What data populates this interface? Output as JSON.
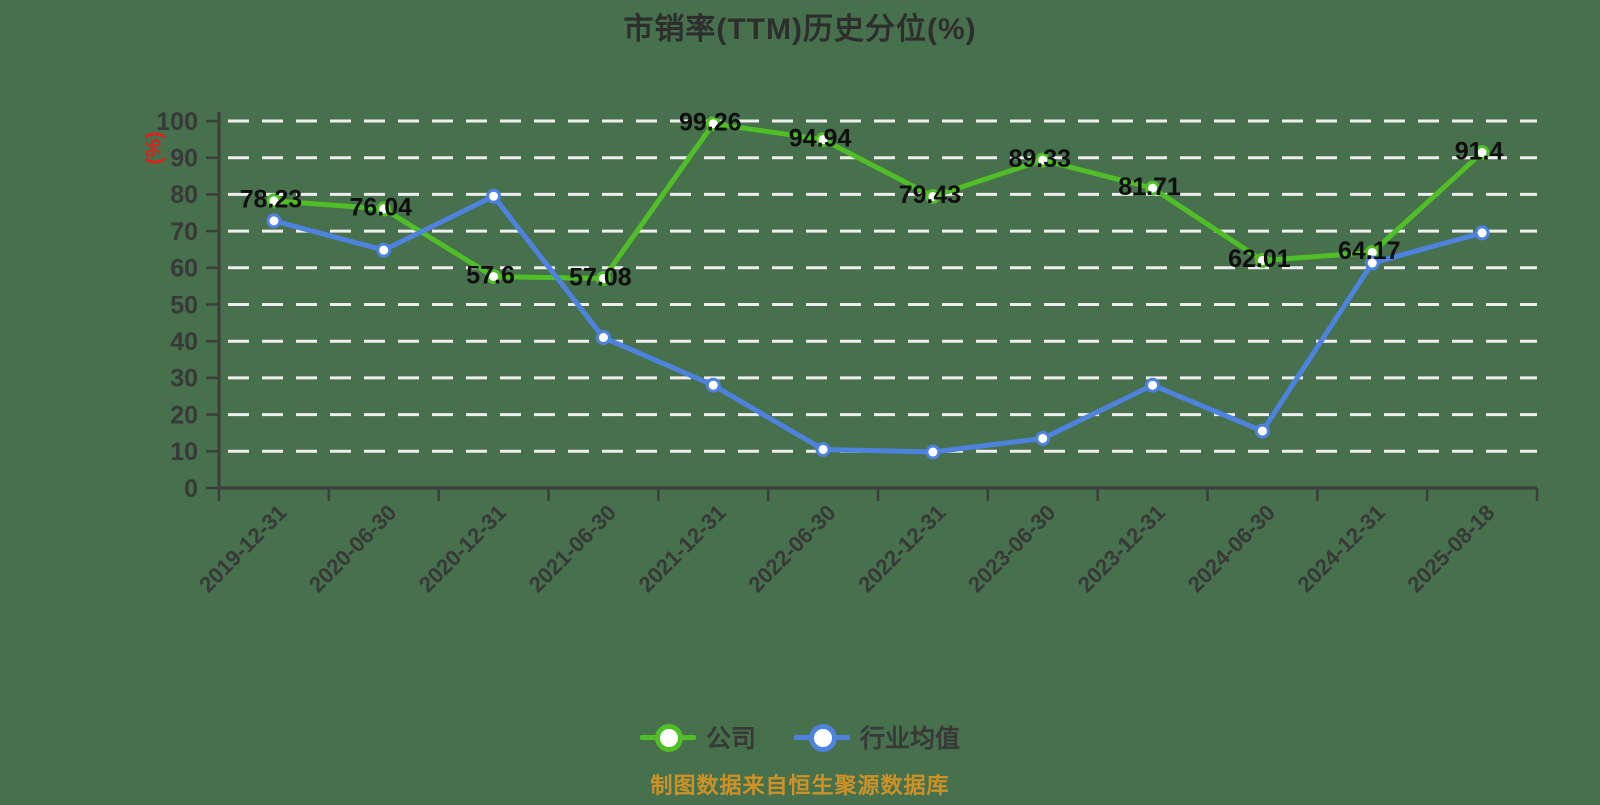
{
  "title": "市销率(TTM)历史分位(%)",
  "footer": "制图数据来自恒生聚源数据库",
  "legend": {
    "company": "公司",
    "industry": "行业均值"
  },
  "colors": {
    "background": "#47704D",
    "grid": "#eeeeee",
    "axis": "#3d3d3d",
    "tick_text": "#393939",
    "title_text": "#2e2e2e",
    "data_label": "#0f0f0f",
    "unit_red": "#e01f1f",
    "footer_orange": "#cd9227",
    "company_green": "#4fbe27",
    "industry_blue": "#4e82df"
  },
  "chart_data": {
    "type": "line",
    "title": "市销率(TTM)历史分位(%)",
    "ylabel": "(%)",
    "xlabel": "",
    "ylim": [
      0,
      100
    ],
    "yticks": [
      0,
      10,
      20,
      30,
      40,
      50,
      60,
      70,
      80,
      90,
      100
    ],
    "grid": "horizontal-dashed-white",
    "legend_position": "bottom",
    "categories": [
      "2019-12-31",
      "2020-06-30",
      "2020-12-31",
      "2021-06-30",
      "2021-12-31",
      "2022-06-30",
      "2022-12-31",
      "2023-06-30",
      "2023-12-31",
      "2024-06-30",
      "2024-12-31",
      "2025-08-18"
    ],
    "series": [
      {
        "name": "公司",
        "color": "#4fbe27",
        "labeled": true,
        "values": [
          78.23,
          76.04,
          57.6,
          57.08,
          99.26,
          94.94,
          79.43,
          89.33,
          81.71,
          62.01,
          64.17,
          91.4
        ]
      },
      {
        "name": "行业均值",
        "color": "#4e82df",
        "labeled": false,
        "values": [
          72.8,
          64.8,
          79.5,
          41,
          28,
          10.5,
          9.8,
          13.5,
          28,
          15.5,
          61.3,
          69.5
        ]
      }
    ]
  }
}
